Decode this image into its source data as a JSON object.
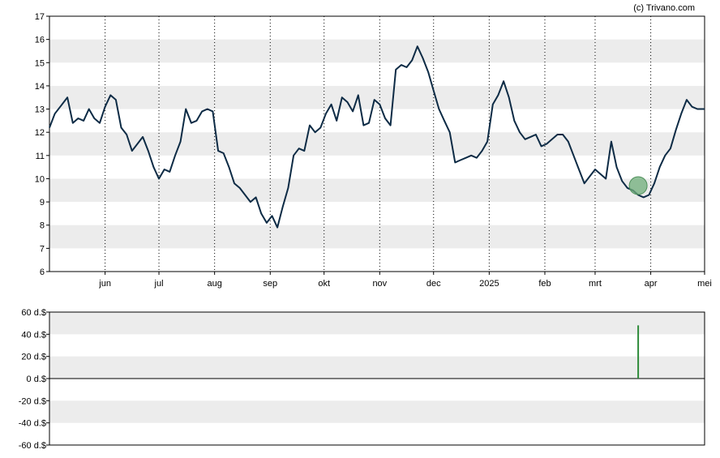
{
  "credit": "(c) Trivano.com",
  "colors": {
    "line": "#0d2b45",
    "band": "#ececec",
    "marker": "#6fae7a",
    "vbar": "#2e8b3a"
  },
  "chart_data": [
    {
      "type": "line",
      "title": "",
      "xlabel": "",
      "ylabel": "",
      "ylim": [
        6,
        17
      ],
      "yticks": [
        6,
        7,
        8,
        9,
        10,
        11,
        12,
        13,
        14,
        15,
        16,
        17
      ],
      "grid": "alternating horizontal bands, dotted vertical lines at month ticks",
      "month_ticks": [
        {
          "label": "jun",
          "date": "2024-06-01"
        },
        {
          "label": "jul",
          "date": "2024-07-01"
        },
        {
          "label": "aug",
          "date": "2024-08-01"
        },
        {
          "label": "sep",
          "date": "2024-09-01"
        },
        {
          "label": "okt",
          "date": "2024-10-01"
        },
        {
          "label": "nov",
          "date": "2024-11-01"
        },
        {
          "label": "dec",
          "date": "2024-12-01"
        },
        {
          "label": "2025",
          "date": "2025-01-01"
        },
        {
          "label": "feb",
          "date": "2025-02-01"
        },
        {
          "label": "mrt",
          "date": "2025-03-01"
        },
        {
          "label": "apr",
          "date": "2025-04-01"
        },
        {
          "label": "mei",
          "date": "2025-05-01"
        }
      ],
      "xlim": [
        "2024-05-01",
        "2025-05-01"
      ],
      "series": [
        {
          "x": [
            "2024-05-01",
            "2024-05-04",
            "2024-05-08",
            "2024-05-11",
            "2024-05-14",
            "2024-05-17",
            "2024-05-20",
            "2024-05-23",
            "2024-05-26",
            "2024-05-29",
            "2024-06-01",
            "2024-06-04",
            "2024-06-07",
            "2024-06-10",
            "2024-06-13",
            "2024-06-16",
            "2024-06-19",
            "2024-06-22",
            "2024-06-25",
            "2024-06-28",
            "2024-07-01",
            "2024-07-04",
            "2024-07-07",
            "2024-07-10",
            "2024-07-13",
            "2024-07-16",
            "2024-07-19",
            "2024-07-22",
            "2024-07-25",
            "2024-07-28",
            "2024-07-31",
            "2024-08-03",
            "2024-08-06",
            "2024-08-09",
            "2024-08-12",
            "2024-08-15",
            "2024-08-18",
            "2024-08-21",
            "2024-08-24",
            "2024-08-27",
            "2024-08-30",
            "2024-09-02",
            "2024-09-05",
            "2024-09-08",
            "2024-09-11",
            "2024-09-14",
            "2024-09-17",
            "2024-09-20",
            "2024-09-23",
            "2024-09-26",
            "2024-09-29",
            "2024-10-02",
            "2024-10-05",
            "2024-10-08",
            "2024-10-11",
            "2024-10-14",
            "2024-10-17",
            "2024-10-20",
            "2024-10-23",
            "2024-10-26",
            "2024-10-29",
            "2024-11-01",
            "2024-11-04",
            "2024-11-07",
            "2024-11-10",
            "2024-11-13",
            "2024-11-16",
            "2024-11-19",
            "2024-11-22",
            "2024-11-25",
            "2024-11-28",
            "2024-12-01",
            "2024-12-04",
            "2024-12-07",
            "2024-12-10",
            "2024-12-13",
            "2024-12-16",
            "2024-12-19",
            "2024-12-22",
            "2024-12-25",
            "2024-12-28",
            "2024-12-31",
            "2025-01-03",
            "2025-01-06",
            "2025-01-09",
            "2025-01-12",
            "2025-01-15",
            "2025-01-18",
            "2025-01-21",
            "2025-01-24",
            "2025-01-27",
            "2025-01-30",
            "2025-02-02",
            "2025-02-05",
            "2025-02-08",
            "2025-02-11",
            "2025-02-14",
            "2025-02-17",
            "2025-02-20",
            "2025-02-23",
            "2025-02-26",
            "2025-03-01",
            "2025-03-04",
            "2025-03-07",
            "2025-03-10",
            "2025-03-13",
            "2025-03-16",
            "2025-03-19",
            "2025-03-22",
            "2025-03-25",
            "2025-03-28",
            "2025-03-31",
            "2025-04-03",
            "2025-04-06",
            "2025-04-09",
            "2025-04-12",
            "2025-04-15",
            "2025-04-18",
            "2025-04-21",
            "2025-04-24",
            "2025-04-27",
            "2025-05-01"
          ],
          "y": [
            12.2,
            12.8,
            13.2,
            13.5,
            12.4,
            12.6,
            12.5,
            13.0,
            12.6,
            12.4,
            13.1,
            13.6,
            13.4,
            12.2,
            11.9,
            11.2,
            11.5,
            11.8,
            11.2,
            10.5,
            10.0,
            10.4,
            10.3,
            11.0,
            11.6,
            13.0,
            12.4,
            12.5,
            12.9,
            13.0,
            12.9,
            11.2,
            11.1,
            10.5,
            9.8,
            9.6,
            9.3,
            9.0,
            9.2,
            8.5,
            8.1,
            8.4,
            7.9,
            8.8,
            9.6,
            11.0,
            11.3,
            11.2,
            12.3,
            12.0,
            12.2,
            12.8,
            13.2,
            12.5,
            13.5,
            13.3,
            12.9,
            13.6,
            12.3,
            12.4,
            13.4,
            13.2,
            12.6,
            12.3,
            14.7,
            14.9,
            14.8,
            15.1,
            15.7,
            15.2,
            14.6,
            13.8,
            13.0,
            12.5,
            12.0,
            10.7,
            10.8,
            10.9,
            11.0,
            10.9,
            11.2,
            11.6,
            13.2,
            13.6,
            14.2,
            13.5,
            12.5,
            12.0,
            11.7,
            11.8,
            11.9,
            11.4,
            11.5,
            11.7,
            11.9,
            11.9,
            11.6,
            11.0,
            10.4,
            9.8,
            10.1,
            10.4,
            10.2,
            10.0,
            11.6,
            10.5,
            9.9,
            9.6,
            9.5,
            9.3,
            9.2,
            9.3,
            9.8,
            10.5,
            11.0,
            11.3,
            12.1,
            12.8,
            13.4,
            13.1,
            13.0,
            13.0
          ],
          "marker": {
            "date": "2025-03-25",
            "value": 9.7
          }
        }
      ]
    },
    {
      "type": "bar",
      "ylabel": "",
      "ylim": [
        -60,
        60
      ],
      "yticks": [
        -60,
        -40,
        -20,
        0,
        20,
        40,
        60
      ],
      "tick_labels": [
        "-60 d.$",
        "-40 d.$",
        "-20 d.$",
        "0 d.$",
        "20 d.$",
        "40 d.$",
        "60 d.$"
      ],
      "grid": "alternating horizontal bands",
      "bars": [
        {
          "date": "2025-03-25",
          "value": 48
        }
      ]
    }
  ]
}
